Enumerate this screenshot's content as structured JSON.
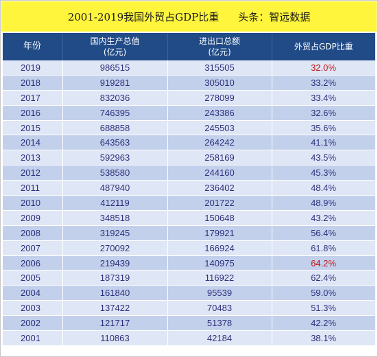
{
  "title": "2001-2019我国外贸占GDP比重",
  "source": "头条：智远数据",
  "colors": {
    "title_bg": "#fff53d",
    "header_bg": "#214b87",
    "row_light": "#dfe6f5",
    "row_dark": "#c3d0ec",
    "text": "#2d2f7a",
    "highlight": "#c01515"
  },
  "highlighted_years": [
    "2019",
    "2006"
  ],
  "chart_data": {
    "type": "table",
    "columns": [
      "年份",
      "国内生产总值\n(亿元)",
      "进出口总额\n(亿元)",
      "外贸占GDP比重"
    ],
    "rows": [
      [
        "2019",
        "986515",
        "315505",
        "32.0%"
      ],
      [
        "2018",
        "919281",
        "305010",
        "33.2%"
      ],
      [
        "2017",
        "832036",
        "278099",
        "33.4%"
      ],
      [
        "2016",
        "746395",
        "243386",
        "32.6%"
      ],
      [
        "2015",
        "688858",
        "245503",
        "35.6%"
      ],
      [
        "2014",
        "643563",
        "264242",
        "41.1%"
      ],
      [
        "2013",
        "592963",
        "258169",
        "43.5%"
      ],
      [
        "2012",
        "538580",
        "244160",
        "45.3%"
      ],
      [
        "2011",
        "487940",
        "236402",
        "48.4%"
      ],
      [
        "2010",
        "412119",
        "201722",
        "48.9%"
      ],
      [
        "2009",
        "348518",
        "150648",
        "43.2%"
      ],
      [
        "2008",
        "319245",
        "179921",
        "56.4%"
      ],
      [
        "2007",
        "270092",
        "166924",
        "61.8%"
      ],
      [
        "2006",
        "219439",
        "140975",
        "64.2%"
      ],
      [
        "2005",
        "187319",
        "116922",
        "62.4%"
      ],
      [
        "2004",
        "161840",
        "95539",
        "59.0%"
      ],
      [
        "2003",
        "137422",
        "70483",
        "51.3%"
      ],
      [
        "2002",
        "121717",
        "51378",
        "42.2%"
      ],
      [
        "2001",
        "110863",
        "42184",
        "38.1%"
      ]
    ]
  }
}
